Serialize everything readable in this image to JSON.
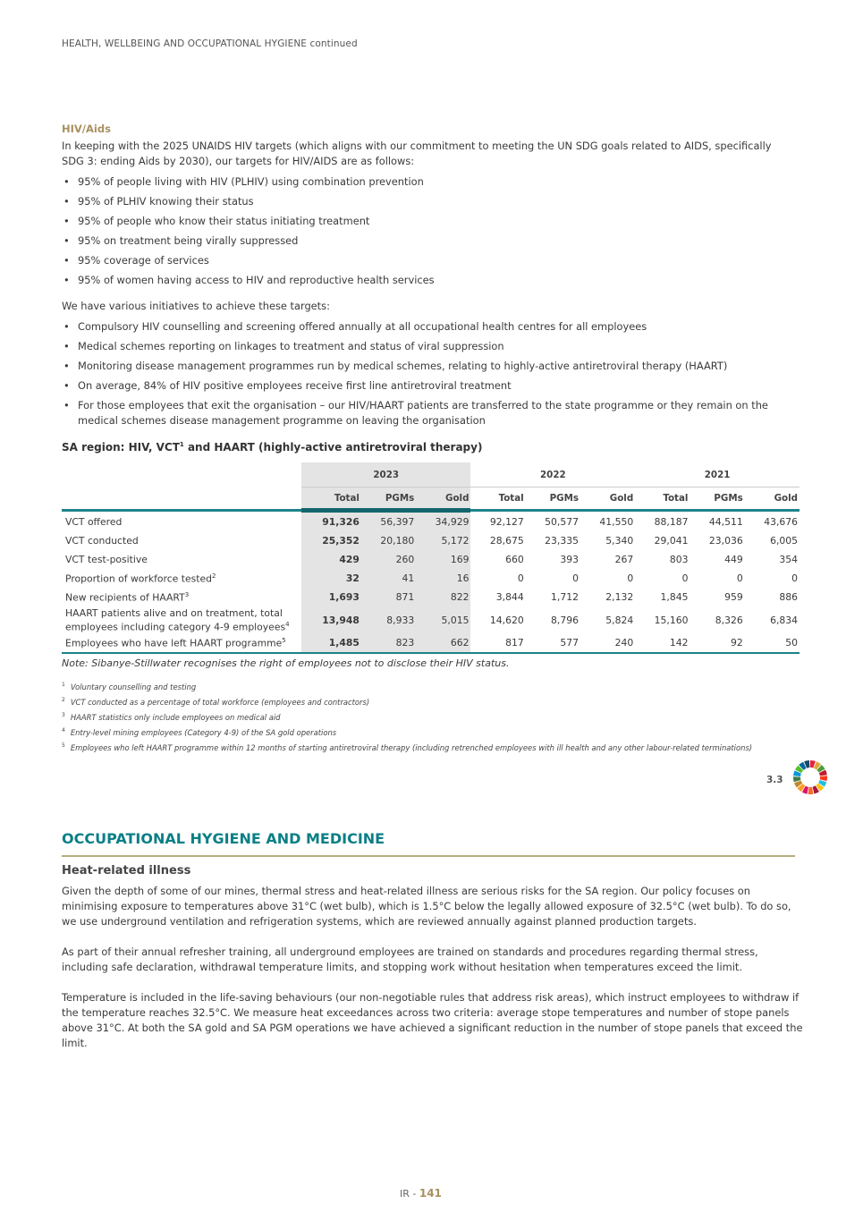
{
  "header": {
    "running_title": "HEALTH, WELLBEING AND OCCUPATIONAL HYGIENE continued"
  },
  "hiv": {
    "heading": "HIV/Aids",
    "intro": "In keeping with the 2025 UNAIDS HIV targets (which aligns with our commitment to meeting the UN SDG goals related to AIDS, specifically SDG 3: ending Aids by 2030), our targets for HIV/AIDS are as follows:",
    "targets": [
      "95% of people living with HIV (PLHIV) using combination prevention",
      "95% of PLHIV knowing their status",
      "95% of people who know their status initiating treatment",
      "95% on treatment being virally suppressed",
      "95% coverage of services",
      "95% of women having access to HIV and reproductive health services"
    ],
    "initiatives_intro": "We have various initiatives to achieve these targets:",
    "initiatives": [
      "Compulsory HIV counselling and screening offered annually at all occupational health centres for all employees",
      "Medical schemes reporting on linkages to treatment and status of viral suppression",
      "Monitoring disease management programmes run by medical schemes, relating to highly-active antiretroviral therapy (HAART)",
      "On average, 84% of HIV positive employees receive first line antiretroviral treatment",
      "For those employees that exit the organisation – our HIV/HAART patients are transferred to the state programme or they remain on the medical schemes disease management programme on leaving the organisation"
    ]
  },
  "table": {
    "title_a": "SA region: HIV, VCT",
    "title_sup": "1",
    "title_b": " and HAART (highly-active antiretroviral therapy)",
    "years": [
      "2023",
      "2022",
      "2021"
    ],
    "cols": [
      "Total",
      "PGMs",
      "Gold",
      "Total",
      "PGMs",
      "Gold",
      "Total",
      "PGMs",
      "Gold"
    ],
    "rows": [
      {
        "label": "VCT offered",
        "sup": "",
        "values": [
          "91,326",
          "56,397",
          "34,929",
          "92,127",
          "50,577",
          "41,550",
          "88,187",
          "44,511",
          "43,676"
        ]
      },
      {
        "label": "VCT conducted",
        "sup": "",
        "values": [
          "25,352",
          "20,180",
          "5,172",
          "28,675",
          "23,335",
          "5,340",
          "29,041",
          "23,036",
          "6,005"
        ]
      },
      {
        "label": "VCT test-positive",
        "sup": "",
        "values": [
          "429",
          "260",
          "169",
          "660",
          "393",
          "267",
          "803",
          "449",
          "354"
        ]
      },
      {
        "label": "Proportion of workforce tested",
        "sup": "2",
        "values": [
          "32",
          "41",
          "16",
          "0",
          "0",
          "0",
          "0",
          "0",
          "0"
        ]
      },
      {
        "label": "New recipients of HAART",
        "sup": "3",
        "values": [
          "1,693",
          "871",
          "822",
          "3,844",
          "1,712",
          "2,132",
          "1,845",
          "959",
          "886"
        ]
      },
      {
        "label": "HAART patients alive and on treatment, total employees including category 4-9 employees",
        "sup": "4",
        "values": [
          "13,948",
          "8,933",
          "5,015",
          "14,620",
          "8,796",
          "5,824",
          "15,160",
          "8,326",
          "6,834"
        ]
      },
      {
        "label": "Employees who have left HAART programme",
        "sup": "5",
        "values": [
          "1,485",
          "823",
          "662",
          "817",
          "577",
          "240",
          "142",
          "92",
          "50"
        ]
      }
    ],
    "note": "Note: Sibanye-Stillwater recognises the right of employees not to disclose their HIV status.",
    "footnotes": [
      {
        "n": "1",
        "text": "Voluntary counselling and testing"
      },
      {
        "n": "2",
        "text": "VCT conducted as a percentage of total workforce (employees and contractors)"
      },
      {
        "n": "3",
        "text": "HAART statistics only include employees on medical aid"
      },
      {
        "n": "4",
        "text": "Entry-level mining employees (Category 4-9) of the SA gold operations"
      },
      {
        "n": "5",
        "text": "Employees who left HAART programme within 12 months of starting antiretroviral therapy (including retrenched employees with ill health and any other labour-related terminations)"
      }
    ]
  },
  "sdg": {
    "target": "3.3",
    "icon": "sdg-wheel-icon"
  },
  "occupational": {
    "heading": "OCCUPATIONAL HYGIENE AND MEDICINE",
    "subheading": "Heat-related illness",
    "paragraphs": [
      "Given the depth of some of our mines, thermal stress and heat-related illness are serious risks for the SA region. Our policy focuses on minimising exposure to temperatures above 31°C (wet bulb), which is 1.5°C below the legally allowed exposure of 32.5°C (wet bulb). To do so, we use underground ventilation and refrigeration systems, which are reviewed annually against planned production targets.",
      "As part of their annual refresher training, all underground employees are trained on standards and procedures regarding thermal stress, including safe declaration, withdrawal temperature limits, and stopping work without hesitation when temperatures exceed the limit.",
      "Temperature is included in the life-saving behaviours (our non-negotiable rules that address risk areas), which instruct employees to withdraw if the temperature reaches 32.5°C. We measure heat exceedances across two criteria: average stope temperatures and number of stope panels above 31°C. At both the SA gold and SA PGM operations we have achieved a significant reduction in the number of stope panels that exceed the limit."
    ]
  },
  "footer": {
    "prefix": "IR - ",
    "page": "141"
  },
  "colors": {
    "teal": "#0b7f86",
    "gold": "#a89060",
    "shade": "#e4e4e4"
  }
}
